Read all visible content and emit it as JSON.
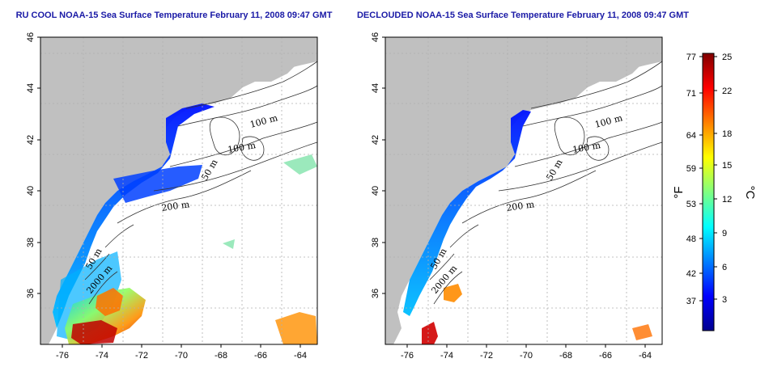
{
  "panels": [
    {
      "id": "left",
      "title": "RU COOL NOAA-15 Sea Surface Temperature February 11, 2008 09:47 GMT",
      "contour_labels": [
        "100 m",
        "100 m",
        "50 m",
        "200 m",
        "50 m",
        "2000 m"
      ]
    },
    {
      "id": "right",
      "title": "DECLOUDED NOAA-15 Sea Surface Temperature February 11, 2008 09:47 GMT",
      "contour_labels": [
        "100 m",
        "100 m",
        "50 m",
        "200 m",
        "50 m",
        "2000 m"
      ]
    }
  ],
  "axes": {
    "x_ticks": [
      "-76",
      "-74",
      "-72",
      "-70",
      "-68",
      "-66",
      "-64"
    ],
    "y_ticks": [
      "46",
      "44",
      "42",
      "40",
      "38",
      "36"
    ]
  },
  "colorbar": {
    "fahrenheit_label": "°F",
    "celsius_label": "°C",
    "fahrenheit_ticks": [
      "77",
      "71",
      "64",
      "59",
      "53",
      "48",
      "42",
      "37"
    ],
    "celsius_ticks": [
      "25",
      "22",
      "18",
      "15",
      "12",
      "9",
      "6",
      "3"
    ],
    "colors": [
      "#00008f",
      "#0000ff",
      "#0080ff",
      "#00ffff",
      "#80ff80",
      "#ffff00",
      "#ff8000",
      "#ff0000",
      "#800000"
    ]
  },
  "colors": {
    "land": "#c0c0c0",
    "ocean": "#ffffff",
    "title": "#1a1aa6"
  }
}
